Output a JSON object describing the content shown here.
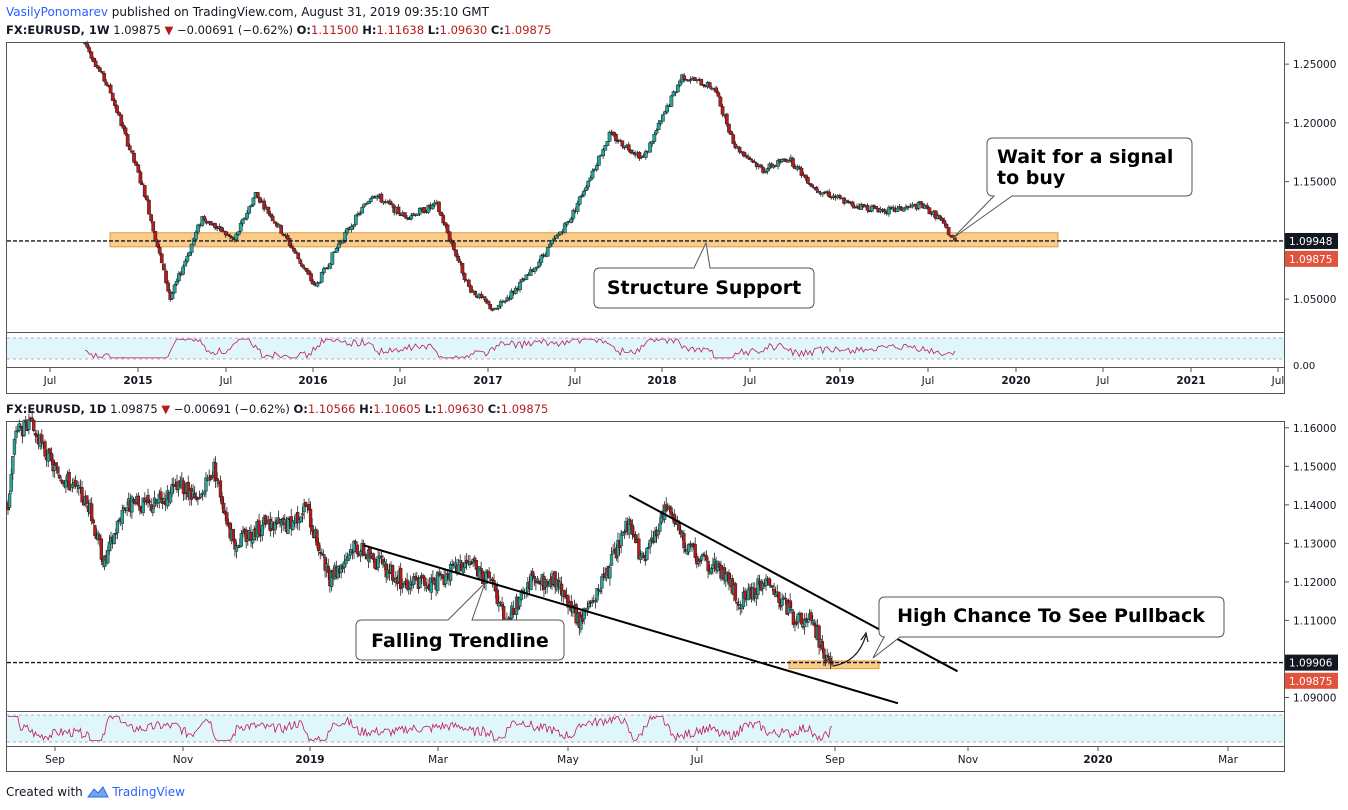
{
  "header": {
    "author": "VasilyPonomarev",
    "published": "published on TradingView.com, August 31, 2019 09:35:10 GMT"
  },
  "footer": {
    "created_with": "Created with",
    "brand": "TradingView"
  },
  "colors": {
    "bull": "#26a69a",
    "bear": "#b71c1c",
    "support_zone": "#f9c77d",
    "support_zone_border": "#e0922f",
    "price_line": "#131722",
    "rsi_fill": "#e0f7fa",
    "rsi_line": "#c2185b"
  },
  "chart_data": [
    {
      "type": "candlestick",
      "symbol_line": {
        "symbol": "FX:EURUSD, 1W",
        "last": "1.09875",
        "change": "−0.00691 (−0.62%)",
        "o_label": "O:",
        "o": "1.11500",
        "h_label": "H:",
        "h": "1.11638",
        "l_label": "L:",
        "l": "1.09630",
        "c_label": "C:",
        "c": "1.09875"
      },
      "ylim": [
        1.022,
        1.268
      ],
      "y_ticks": [
        "1.25000",
        "1.20000",
        "1.15000",
        "1.10000",
        "1.05000"
      ],
      "y_tick_values": [
        1.25,
        1.2,
        1.15,
        1.1,
        1.05
      ],
      "price_labels": [
        {
          "value": 1.09948,
          "text": "1.09948",
          "style": "dark"
        },
        {
          "value": 1.09875,
          "text": "1.09875",
          "style": "red"
        }
      ],
      "x_ticks": [
        "Jul",
        "2015",
        "Jul",
        "2016",
        "Jul",
        "2017",
        "Jul",
        "2018",
        "Jul",
        "2019",
        "Jul",
        "2020",
        "Jul",
        "2021",
        "Jul"
      ],
      "x_ticks_bold": [
        false,
        true,
        false,
        true,
        false,
        true,
        false,
        true,
        false,
        true,
        false,
        true,
        false,
        true,
        false
      ],
      "path": [
        [
          0,
          1.268
        ],
        [
          12,
          1.226
        ],
        [
          28,
          1.14
        ],
        [
          40,
          1.05
        ],
        [
          55,
          1.12
        ],
        [
          70,
          1.1
        ],
        [
          80,
          1.14
        ],
        [
          95,
          1.1
        ],
        [
          108,
          1.06
        ],
        [
          120,
          1.1
        ],
        [
          135,
          1.14
        ],
        [
          150,
          1.12
        ],
        [
          165,
          1.13
        ],
        [
          180,
          1.06
        ],
        [
          192,
          1.04
        ],
        [
          208,
          1.07
        ],
        [
          228,
          1.12
        ],
        [
          246,
          1.19
        ],
        [
          262,
          1.17
        ],
        [
          280,
          1.24
        ],
        [
          295,
          1.23
        ],
        [
          305,
          1.18
        ],
        [
          318,
          1.16
        ],
        [
          330,
          1.17
        ],
        [
          342,
          1.145
        ],
        [
          360,
          1.13
        ],
        [
          378,
          1.125
        ],
        [
          392,
          1.13
        ],
        [
          400,
          1.12
        ],
        [
          408,
          1.09875
        ]
      ],
      "support_zone": [
        1.0945,
        1.1065
      ],
      "support_zone_range": [
        0,
        418
      ],
      "dashed_level": 1.09948,
      "annotations": [
        {
          "text": "Structure Support",
          "box": "support-callout"
        },
        {
          "text": "Wait for a signal to buy",
          "lines": [
            "Wait for a signal",
            "to buy"
          ],
          "box": "signal-callout"
        }
      ],
      "indicator": {
        "type": "rsi",
        "axis_label": "0.00"
      }
    },
    {
      "type": "candlestick",
      "symbol_line": {
        "symbol": "FX:EURUSD, 1D",
        "last": "1.09875",
        "change": "−0.00691 (−0.62%)",
        "o_label": "O:",
        "o": "1.10566",
        "h_label": "H:",
        "h": "1.10605",
        "l_label": "L:",
        "l": "1.09630",
        "c_label": "C:",
        "c": "1.09875"
      },
      "ylim": [
        1.0865,
        1.1615
      ],
      "y_ticks": [
        "1.16000",
        "1.15000",
        "1.14000",
        "1.13000",
        "1.12000",
        "1.11000",
        "1.10000",
        "1.09000"
      ],
      "y_tick_values": [
        1.16,
        1.15,
        1.14,
        1.13,
        1.12,
        1.11,
        1.1,
        1.09
      ],
      "price_labels": [
        {
          "value": 1.09906,
          "text": "1.09906",
          "style": "dark"
        },
        {
          "value": 1.09875,
          "text": "1.09875",
          "style": "red"
        }
      ],
      "x_ticks": [
        "Sep",
        "Nov",
        "2019",
        "Mar",
        "May",
        "Jul",
        "Sep",
        "Nov",
        "2020",
        "Mar"
      ],
      "x_ticks_bold": [
        false,
        false,
        true,
        false,
        false,
        false,
        false,
        false,
        true,
        false
      ],
      "path": [
        [
          0,
          1.14
        ],
        [
          5,
          1.16
        ],
        [
          15,
          1.16
        ],
        [
          28,
          1.15
        ],
        [
          40,
          1.145
        ],
        [
          50,
          1.14
        ],
        [
          60,
          1.125
        ],
        [
          72,
          1.14
        ],
        [
          90,
          1.14
        ],
        [
          108,
          1.145
        ],
        [
          118,
          1.14
        ],
        [
          128,
          1.15
        ],
        [
          140,
          1.13
        ],
        [
          160,
          1.135
        ],
        [
          175,
          1.135
        ],
        [
          185,
          1.14
        ],
        [
          200,
          1.12
        ],
        [
          215,
          1.13
        ],
        [
          230,
          1.125
        ],
        [
          245,
          1.12
        ],
        [
          265,
          1.12
        ],
        [
          285,
          1.125
        ],
        [
          300,
          1.12
        ],
        [
          310,
          1.11
        ],
        [
          325,
          1.12
        ],
        [
          340,
          1.12
        ],
        [
          355,
          1.11
        ],
        [
          370,
          1.12
        ],
        [
          385,
          1.135
        ],
        [
          395,
          1.125
        ],
        [
          410,
          1.14
        ],
        [
          420,
          1.13
        ],
        [
          430,
          1.125
        ],
        [
          440,
          1.125
        ],
        [
          455,
          1.115
        ],
        [
          470,
          1.12
        ],
        [
          480,
          1.115
        ],
        [
          490,
          1.11
        ],
        [
          500,
          1.11
        ],
        [
          508,
          1.1
        ],
        [
          512,
          1.09875
        ]
      ],
      "support_zone": [
        1.0975,
        1.0995
      ],
      "support_zone_range": [
        491,
        524
      ],
      "dashed_level": 1.09906,
      "trendlines": [
        {
          "name": "falling-trendline-lower",
          "from": [
            221,
            1.1295
          ],
          "to": [
            553,
            1.0885
          ]
        },
        {
          "name": "falling-trendline-upper",
          "from": [
            386,
            1.1425
          ],
          "to": [
            590,
            1.0968
          ]
        }
      ],
      "annotations": [
        {
          "text": "Falling Trendline",
          "box": "trendline-callout"
        },
        {
          "text": "High Chance To See Pullback",
          "box": "pullback-callout"
        }
      ],
      "indicator": {
        "type": "rsi"
      }
    }
  ]
}
